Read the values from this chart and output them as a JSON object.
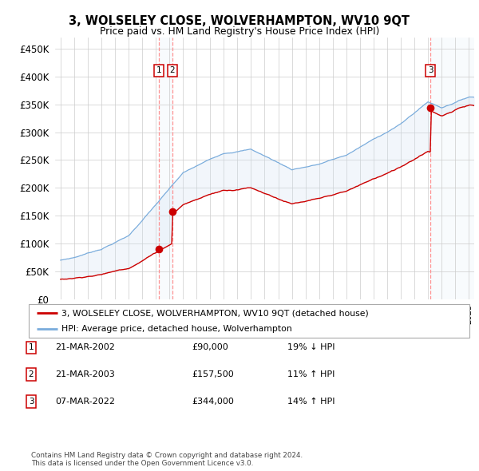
{
  "title": "3, WOLSELEY CLOSE, WOLVERHAMPTON, WV10 9QT",
  "subtitle": "Price paid vs. HM Land Registry's House Price Index (HPI)",
  "legend_line1": "3, WOLSELEY CLOSE, WOLVERHAMPTON, WV10 9QT (detached house)",
  "legend_line2": "HPI: Average price, detached house, Wolverhampton",
  "hpi_color": "#7aacdc",
  "price_color": "#cc0000",
  "fill_color": "#ccdff2",
  "background_color": "#ffffff",
  "grid_color": "#cccccc",
  "vline_color": "#ff8888",
  "sale_color": "#cc0000",
  "transactions": [
    {
      "num": 1,
      "date": "21-MAR-2002",
      "price": 90000,
      "hpi_rel": "19% ↓ HPI",
      "x_year": 2002.22
    },
    {
      "num": 2,
      "date": "21-MAR-2003",
      "price": 157500,
      "hpi_rel": "11% ↑ HPI",
      "x_year": 2003.22
    },
    {
      "num": 3,
      "date": "07-MAR-2022",
      "price": 344000,
      "hpi_rel": "14% ↑ HPI",
      "x_year": 2022.19
    }
  ],
  "footnote1": "Contains HM Land Registry data © Crown copyright and database right 2024.",
  "footnote2": "This data is licensed under the Open Government Licence v3.0.",
  "ylim": [
    0,
    470000
  ],
  "yticks": [
    0,
    50000,
    100000,
    150000,
    200000,
    250000,
    300000,
    350000,
    400000,
    450000
  ],
  "xlim_start": 1994.6,
  "xlim_end": 2025.4
}
